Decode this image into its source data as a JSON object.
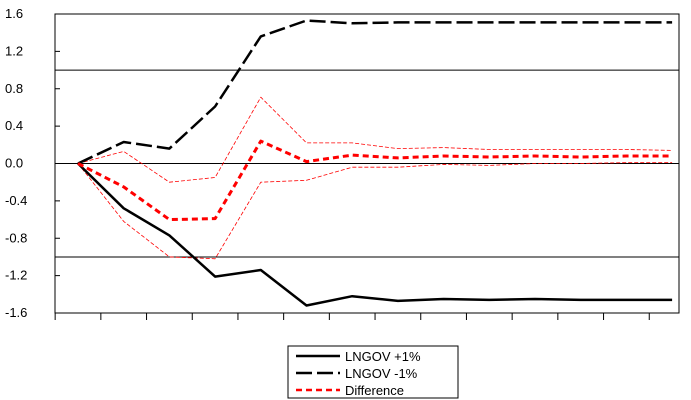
{
  "chart_data": {
    "type": "line",
    "title": "",
    "xlabel": "",
    "ylabel": "",
    "ylim": [
      -1.6,
      1.6
    ],
    "yticks": [
      "1.6",
      "1.2",
      "0.8",
      "0.4",
      "0.0",
      "-0.4",
      "-0.8",
      "-1.2",
      "-1.6"
    ],
    "x": [
      1,
      2,
      3,
      4,
      5,
      6,
      7,
      8,
      9,
      10,
      11,
      12,
      13,
      14
    ],
    "reference_lines": [
      1.0,
      0.0,
      -1.0
    ],
    "grid": false,
    "legend_position": "bottom-center",
    "series": [
      {
        "name": "LNGOV +1%",
        "style": "solid-thick",
        "color": "#000000",
        "values": [
          0.0,
          -0.48,
          -0.77,
          -1.21,
          -1.14,
          -1.52,
          -1.42,
          -1.47,
          -1.45,
          -1.46,
          -1.45,
          -1.46,
          -1.46,
          -1.46
        ]
      },
      {
        "name": "LNGOV -1%",
        "style": "longdash-thick",
        "color": "#000000",
        "values": [
          0.0,
          0.23,
          0.16,
          0.61,
          1.36,
          1.53,
          1.5,
          1.51,
          1.51,
          1.51,
          1.51,
          1.51,
          1.51,
          1.51
        ]
      },
      {
        "name": "Difference",
        "style": "dash-thick",
        "color": "#ff0000",
        "values": [
          0.0,
          -0.25,
          -0.6,
          -0.59,
          0.24,
          0.02,
          0.09,
          0.06,
          0.08,
          0.07,
          0.08,
          0.07,
          0.08,
          0.08
        ]
      },
      {
        "name": "",
        "style": "dash-thin",
        "color": "#ff0000",
        "values": [
          0.0,
          0.13,
          -0.2,
          -0.15,
          0.71,
          0.22,
          0.22,
          0.16,
          0.17,
          0.15,
          0.15,
          0.15,
          0.15,
          0.14
        ]
      },
      {
        "name": "",
        "style": "dash-thin",
        "color": "#ff0000",
        "values": [
          0.0,
          -0.62,
          -1.0,
          -1.02,
          -0.2,
          -0.18,
          -0.04,
          -0.04,
          -0.01,
          -0.02,
          0.0,
          0.0,
          0.01,
          0.01
        ]
      }
    ]
  }
}
